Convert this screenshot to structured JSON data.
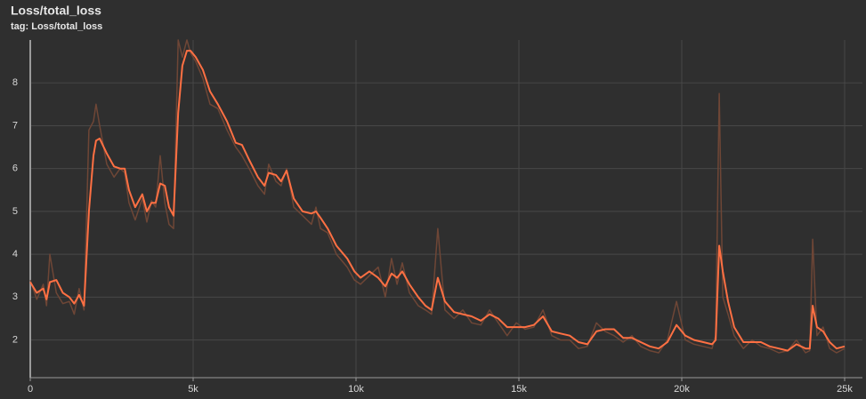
{
  "chart_data": {
    "type": "line",
    "title": "Loss/total_loss",
    "subtitle": "tag: Loss/total_loss",
    "x": [
      0,
      200,
      400,
      500,
      600,
      800,
      1000,
      1200,
      1350,
      1500,
      1650,
      1800,
      1940,
      2020,
      2130,
      2350,
      2570,
      2760,
      2900,
      3030,
      3220,
      3440,
      3580,
      3720,
      3850,
      3990,
      4130,
      4260,
      4400,
      4540,
      4670,
      4810,
      4920,
      5080,
      5300,
      5520,
      5760,
      6040,
      6310,
      6500,
      6720,
      6990,
      7190,
      7320,
      7540,
      7700,
      7870,
      8090,
      8360,
      8630,
      8770,
      8910,
      9130,
      9400,
      9730,
      9950,
      10140,
      10410,
      10680,
      10900,
      11090,
      11260,
      11420,
      11640,
      11910,
      12130,
      12320,
      12510,
      12730,
      13010,
      13280,
      13550,
      13830,
      14100,
      14370,
      14640,
      14920,
      15190,
      15460,
      15740,
      16010,
      16280,
      16560,
      16830,
      17100,
      17380,
      17650,
      17920,
      18200,
      18470,
      18740,
      19020,
      19290,
      19560,
      19840,
      20110,
      20380,
      20660,
      20930,
      21040,
      21150,
      21260,
      21420,
      21610,
      21890,
      22160,
      22430,
      22700,
      22980,
      23250,
      23520,
      23800,
      23930,
      24020,
      24150,
      24340,
      24540,
      24750,
      25000
    ],
    "series": [
      {
        "color": "#6e4636",
        "values": [
          3.4,
          2.95,
          3.3,
          2.8,
          4.0,
          3.1,
          2.85,
          2.9,
          2.6,
          3.2,
          2.7,
          6.9,
          7.1,
          7.5,
          7.0,
          6.1,
          5.8,
          6.0,
          5.9,
          5.2,
          4.8,
          5.3,
          4.75,
          5.25,
          5.1,
          6.3,
          5.2,
          4.7,
          4.6,
          9.0,
          8.6,
          9.0,
          8.7,
          8.5,
          8.1,
          7.5,
          7.4,
          6.9,
          6.5,
          6.3,
          6.0,
          5.6,
          5.4,
          6.1,
          5.7,
          5.6,
          6.0,
          5.1,
          4.9,
          4.7,
          5.1,
          4.6,
          4.5,
          4.0,
          3.7,
          3.4,
          3.3,
          3.5,
          3.7,
          3.0,
          3.9,
          3.3,
          3.8,
          3.1,
          2.8,
          2.7,
          2.6,
          4.6,
          2.7,
          2.5,
          2.7,
          2.4,
          2.35,
          2.7,
          2.4,
          2.1,
          2.4,
          2.25,
          2.3,
          2.7,
          2.1,
          2.0,
          2.0,
          1.8,
          1.85,
          2.4,
          2.2,
          2.1,
          1.95,
          2.1,
          1.85,
          1.75,
          1.7,
          2.0,
          2.9,
          2.0,
          1.9,
          1.85,
          1.8,
          2.1,
          7.75,
          3.0,
          2.6,
          2.1,
          1.8,
          2.0,
          1.85,
          1.8,
          1.7,
          1.75,
          2.0,
          1.7,
          1.75,
          4.35,
          2.1,
          2.3,
          1.8,
          1.7,
          1.8
        ]
      },
      {
        "color": "#ff7043",
        "values": [
          3.35,
          3.1,
          3.2,
          2.95,
          3.35,
          3.4,
          3.1,
          3.0,
          2.85,
          3.05,
          2.8,
          5.0,
          6.3,
          6.65,
          6.7,
          6.35,
          6.05,
          6.0,
          6.0,
          5.5,
          5.1,
          5.4,
          5.0,
          5.2,
          5.2,
          5.65,
          5.6,
          5.1,
          4.9,
          7.3,
          8.4,
          8.75,
          8.75,
          8.6,
          8.3,
          7.8,
          7.5,
          7.1,
          6.6,
          6.55,
          6.2,
          5.8,
          5.6,
          5.9,
          5.85,
          5.7,
          5.95,
          5.3,
          5.0,
          4.95,
          5.0,
          4.85,
          4.6,
          4.2,
          3.9,
          3.6,
          3.45,
          3.6,
          3.45,
          3.25,
          3.55,
          3.45,
          3.6,
          3.3,
          3.0,
          2.8,
          2.7,
          3.45,
          2.9,
          2.65,
          2.6,
          2.55,
          2.45,
          2.6,
          2.5,
          2.3,
          2.3,
          2.3,
          2.35,
          2.55,
          2.2,
          2.15,
          2.1,
          1.95,
          1.9,
          2.2,
          2.25,
          2.25,
          2.05,
          2.05,
          1.95,
          1.85,
          1.8,
          1.95,
          2.35,
          2.1,
          2.0,
          1.95,
          1.9,
          2.0,
          4.2,
          3.6,
          2.9,
          2.3,
          1.95,
          1.95,
          1.95,
          1.85,
          1.8,
          1.75,
          1.9,
          1.8,
          1.8,
          2.8,
          2.3,
          2.2,
          1.95,
          1.8,
          1.85
        ]
      }
    ],
    "xlim": [
      0,
      25000
    ],
    "xticks": [
      0,
      {
        "value": 5000,
        "label": "5k"
      },
      {
        "value": 10000,
        "label": "10k"
      },
      {
        "value": 15000,
        "label": "15k"
      },
      {
        "value": 20000,
        "label": "20k"
      },
      {
        "value": 25000,
        "label": "25k"
      }
    ],
    "ylim": [
      1.12,
      9.0
    ],
    "yticks": [
      2,
      3,
      4,
      5,
      6,
      7,
      8
    ],
    "grid": true
  }
}
